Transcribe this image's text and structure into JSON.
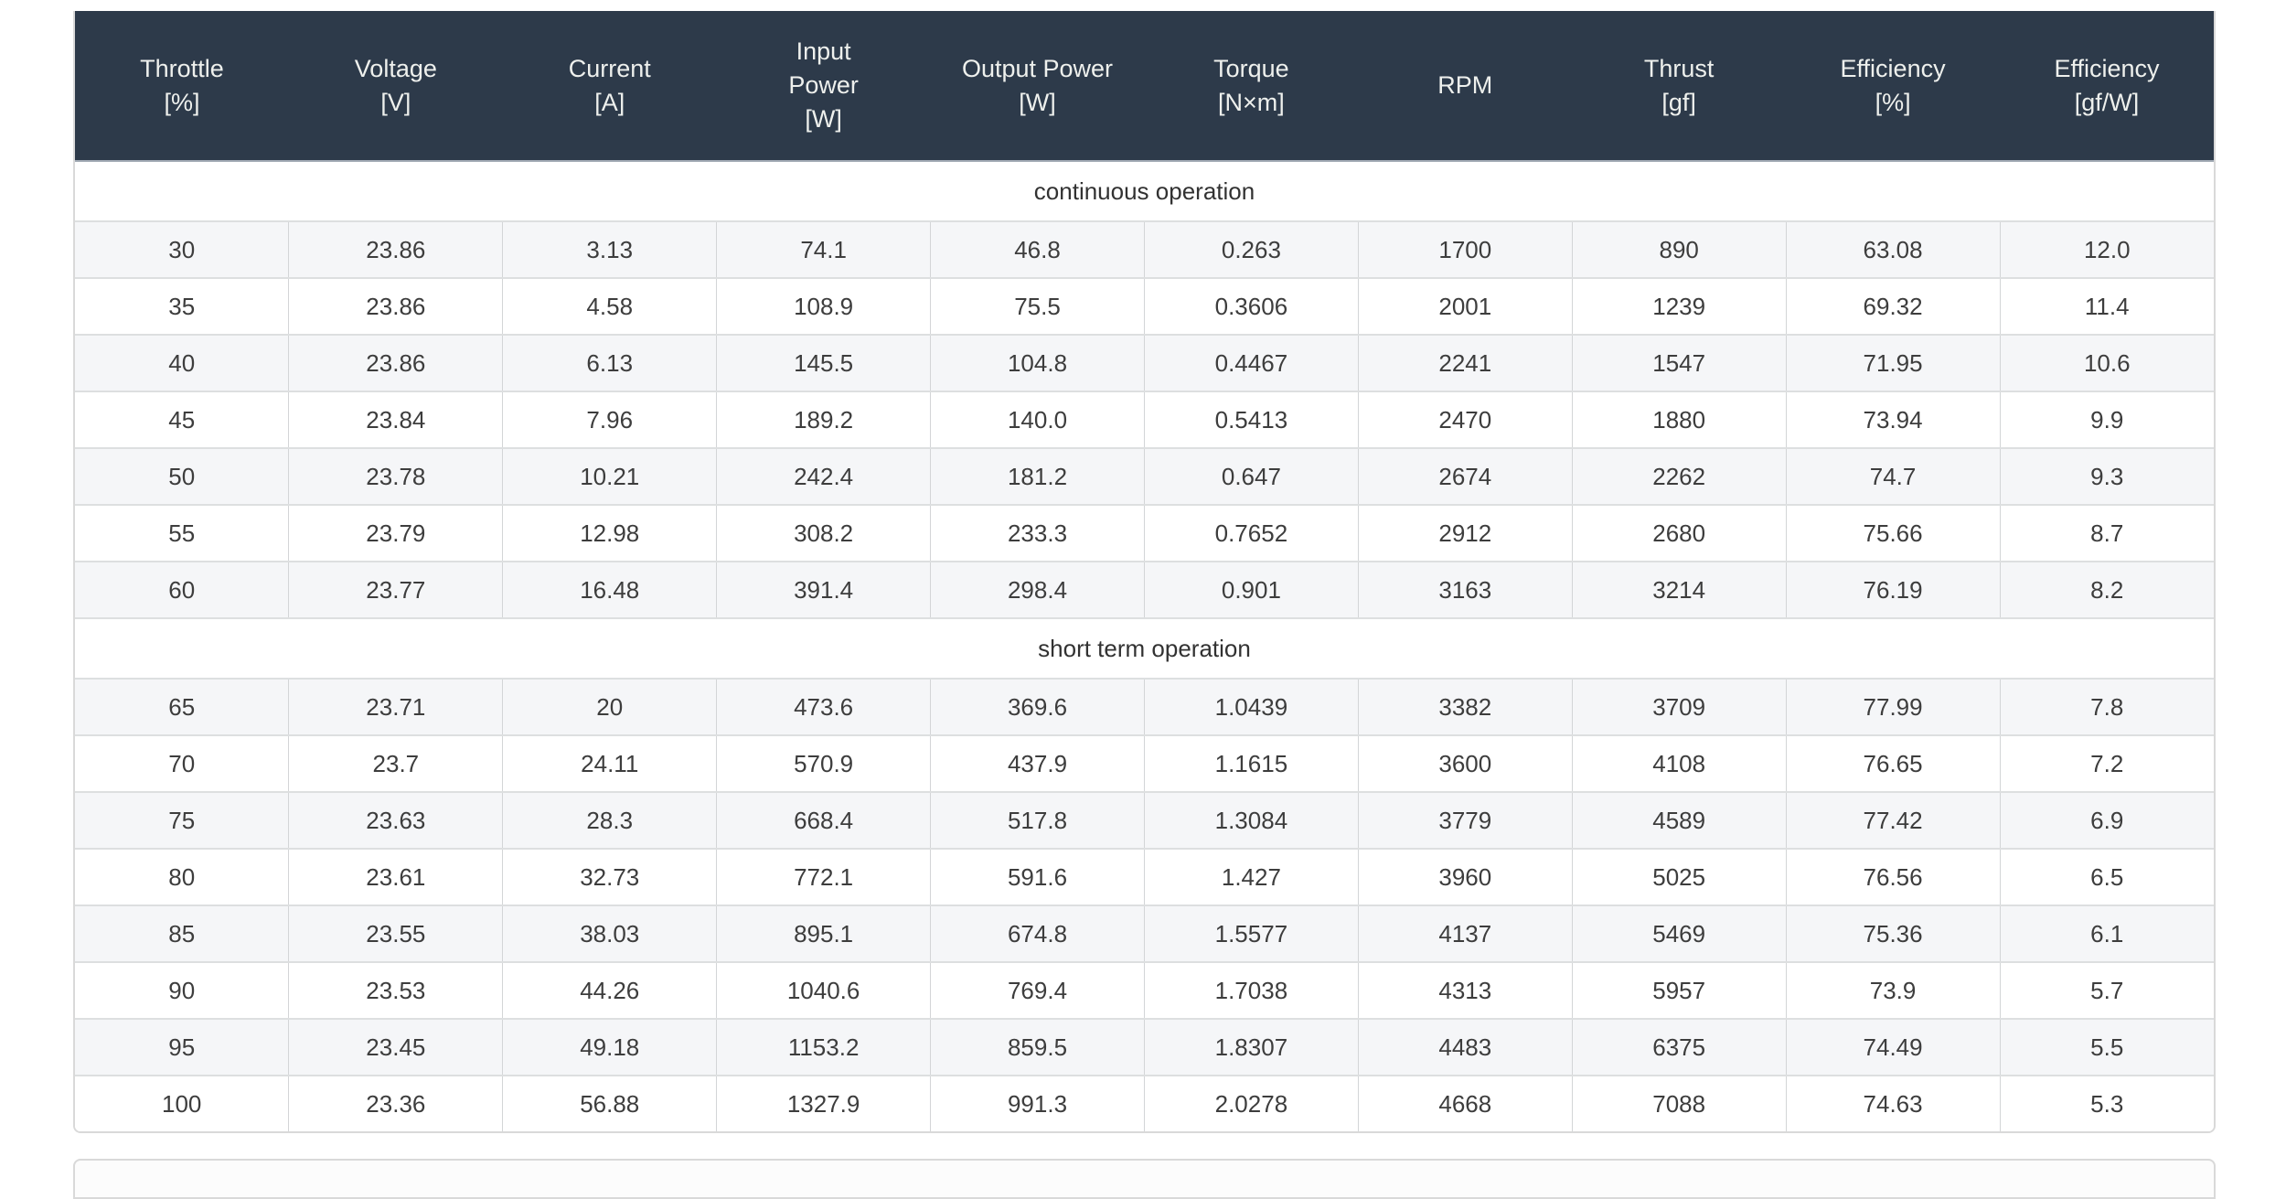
{
  "theme": {
    "header-bg": "#2d3a4a",
    "header-text": "#eef0ed",
    "header-separator": "#9fa8b2",
    "row-stripe": "#f5f6f8",
    "v-border": "#d3d5d7",
    "h-border": "#dddfe0",
    "card-border": "#d9d9d9",
    "cell-text": "#3d3d3d",
    "section-text": "#323232"
  },
  "table": {
    "columns": [
      {
        "id": "throttle",
        "label": "Throttle\n[%]"
      },
      {
        "id": "voltage",
        "label": "Voltage\n[V]"
      },
      {
        "id": "current",
        "label": "Current\n[A]"
      },
      {
        "id": "input-power",
        "label": "Input\nPower\n[W]"
      },
      {
        "id": "output-power",
        "label": "Output Power\n[W]"
      },
      {
        "id": "torque",
        "label": "Torque\n[N×m]"
      },
      {
        "id": "rpm",
        "label": "RPM"
      },
      {
        "id": "thrust",
        "label": "Thrust\n[gf]"
      },
      {
        "id": "efficiency-pct",
        "label": "Efficiency\n[%]"
      },
      {
        "id": "efficiency-gfw",
        "label": "Efficiency\n[gf/W]"
      }
    ],
    "sections": [
      {
        "id": "continuous-operation",
        "title": "continuous operation",
        "rows": [
          [
            "30",
            "23.86",
            "3.13",
            "74.1",
            "46.8",
            "0.263",
            "1700",
            "890",
            "63.08",
            "12.0"
          ],
          [
            "35",
            "23.86",
            "4.58",
            "108.9",
            "75.5",
            "0.3606",
            "2001",
            "1239",
            "69.32",
            "11.4"
          ],
          [
            "40",
            "23.86",
            "6.13",
            "145.5",
            "104.8",
            "0.4467",
            "2241",
            "1547",
            "71.95",
            "10.6"
          ],
          [
            "45",
            "23.84",
            "7.96",
            "189.2",
            "140.0",
            "0.5413",
            "2470",
            "1880",
            "73.94",
            "9.9"
          ],
          [
            "50",
            "23.78",
            "10.21",
            "242.4",
            "181.2",
            "0.647",
            "2674",
            "2262",
            "74.7",
            "9.3"
          ],
          [
            "55",
            "23.79",
            "12.98",
            "308.2",
            "233.3",
            "0.7652",
            "2912",
            "2680",
            "75.66",
            "8.7"
          ],
          [
            "60",
            "23.77",
            "16.48",
            "391.4",
            "298.4",
            "0.901",
            "3163",
            "3214",
            "76.19",
            "8.2"
          ]
        ]
      },
      {
        "id": "short-term-operation",
        "title": "short term operation",
        "rows": [
          [
            "65",
            "23.71",
            "20",
            "473.6",
            "369.6",
            "1.0439",
            "3382",
            "3709",
            "77.99",
            "7.8"
          ],
          [
            "70",
            "23.7",
            "24.11",
            "570.9",
            "437.9",
            "1.1615",
            "3600",
            "4108",
            "76.65",
            "7.2"
          ],
          [
            "75",
            "23.63",
            "28.3",
            "668.4",
            "517.8",
            "1.3084",
            "3779",
            "4589",
            "77.42",
            "6.9"
          ],
          [
            "80",
            "23.61",
            "32.73",
            "772.1",
            "591.6",
            "1.427",
            "3960",
            "5025",
            "76.56",
            "6.5"
          ],
          [
            "85",
            "23.55",
            "38.03",
            "895.1",
            "674.8",
            "1.5577",
            "4137",
            "5469",
            "75.36",
            "6.1"
          ],
          [
            "90",
            "23.53",
            "44.26",
            "1040.6",
            "769.4",
            "1.7038",
            "4313",
            "5957",
            "73.9",
            "5.7"
          ],
          [
            "95",
            "23.45",
            "49.18",
            "1153.2",
            "859.5",
            "1.8307",
            "4483",
            "6375",
            "74.49",
            "5.5"
          ],
          [
            "100",
            "23.36",
            "56.88",
            "1327.9",
            "991.3",
            "2.0278",
            "4668",
            "7088",
            "74.63",
            "5.3"
          ]
        ]
      }
    ]
  }
}
